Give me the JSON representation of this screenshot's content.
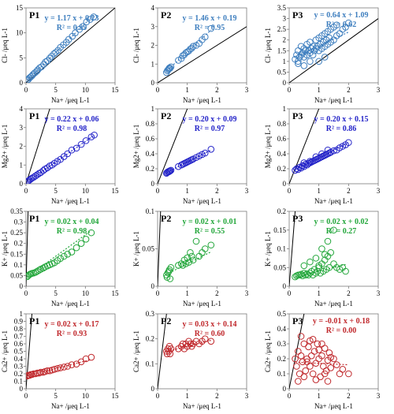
{
  "colors": {
    "cl": "#3f7fbf",
    "mg": "#2323c8",
    "k": "#22a63a",
    "ca": "#c0282c",
    "ref": "#000000"
  },
  "chart_data": [
    {
      "type": "scatter",
      "title": "P1",
      "xlabel": "Na+ /μeq L-1",
      "ylabel": "Cl- /μeq L-1",
      "xlim": [
        0,
        15
      ],
      "ylim": [
        0,
        15
      ],
      "xticks": [
        "0",
        "5",
        "10",
        "15"
      ],
      "yticks": [
        "0",
        "5",
        "10",
        "15"
      ],
      "equation": "y = 1.17 x + 0.23",
      "r2": "R² = 0.99",
      "fit": {
        "slope": 1.17,
        "intercept": 0.23
      },
      "points_x": [
        0.2,
        0.4,
        0.6,
        0.8,
        1.0,
        1.2,
        1.5,
        1.8,
        2.0,
        2.3,
        2.6,
        3.0,
        3.3,
        3.6,
        4.0,
        4.3,
        4.7,
        5.0,
        5.4,
        5.8,
        6.3,
        6.8,
        7.2,
        7.8,
        8.3,
        9.0,
        9.6,
        10.2,
        10.8,
        11.4
      ],
      "points_y": [
        0.5,
        0.7,
        1.0,
        1.2,
        1.4,
        1.7,
        2.0,
        2.3,
        2.6,
        3.0,
        3.2,
        3.7,
        4.2,
        4.4,
        4.9,
        5.3,
        5.8,
        6.1,
        6.5,
        7.1,
        7.6,
        8.1,
        8.7,
        9.3,
        10.0,
        10.7,
        11.3,
        12.2,
        12.7,
        13.2
      ]
    },
    {
      "type": "scatter",
      "title": "P2",
      "xlabel": "Na+ /μeq L-1",
      "ylabel": "Cl- /μeq L-1",
      "xlim": [
        0,
        3
      ],
      "ylim": [
        0,
        4
      ],
      "xticks": [
        "0",
        "1",
        "2",
        "3"
      ],
      "yticks": [
        "0",
        "1",
        "2",
        "3",
        "4"
      ],
      "equation": "y = 1.46 x + 0.19",
      "r2": "R² = 0.95",
      "fit": {
        "slope": 1.46,
        "intercept": 0.19
      },
      "points_x": [
        0.3,
        0.33,
        0.36,
        0.38,
        0.4,
        0.42,
        0.45,
        0.7,
        0.8,
        0.85,
        0.9,
        0.95,
        1.0,
        1.05,
        1.1,
        1.15,
        1.2,
        1.3,
        1.4,
        1.5,
        1.6,
        1.8
      ],
      "points_y": [
        0.55,
        0.65,
        0.7,
        0.75,
        0.8,
        0.78,
        0.85,
        1.2,
        1.3,
        1.45,
        1.5,
        1.6,
        1.65,
        1.7,
        1.8,
        1.85,
        1.95,
        2.0,
        2.1,
        2.3,
        2.45,
        2.9
      ]
    },
    {
      "type": "scatter",
      "title": "P3",
      "xlabel": "Na+ /μeq L-1",
      "ylabel": "Cl- /μeq L-1",
      "xlim": [
        0,
        3
      ],
      "ylim": [
        0,
        3.5
      ],
      "xticks": [
        "0",
        "1",
        "2",
        "3"
      ],
      "yticks": [
        "0",
        "0.5",
        "1",
        "1.5",
        "2",
        "2.5",
        "3",
        "3.5"
      ],
      "equation": "y = 0.64 x + 1.09",
      "r2": "R² = 0.62",
      "fit": {
        "slope": 0.64,
        "intercept": 1.09
      },
      "points_x": [
        0.2,
        0.25,
        0.3,
        0.3,
        0.35,
        0.4,
        0.4,
        0.45,
        0.5,
        0.5,
        0.55,
        0.6,
        0.6,
        0.65,
        0.7,
        0.7,
        0.75,
        0.8,
        0.8,
        0.85,
        0.9,
        0.9,
        0.95,
        1.0,
        1.0,
        1.05,
        1.1,
        1.1,
        1.15,
        1.2,
        1.2,
        1.25,
        1.3,
        1.3,
        1.35,
        1.4,
        1.4,
        1.5,
        1.5,
        1.6,
        1.6,
        1.7,
        1.8,
        1.9,
        2.0,
        0.3,
        0.5,
        0.7,
        1.0,
        1.2
      ],
      "points_y": [
        1.1,
        1.3,
        1.0,
        1.5,
        1.2,
        1.3,
        1.7,
        1.4,
        1.2,
        1.6,
        1.5,
        1.3,
        1.8,
        1.5,
        1.4,
        1.9,
        1.6,
        1.3,
        1.7,
        1.5,
        1.6,
        2.0,
        1.7,
        1.5,
        2.1,
        1.8,
        1.6,
        2.2,
        1.9,
        1.7,
        2.3,
        2.0,
        1.8,
        2.4,
        2.1,
        1.9,
        2.5,
        2.0,
        2.6,
        2.2,
        2.7,
        2.3,
        2.5,
        2.6,
        2.8,
        0.9,
        0.8,
        1.0,
        1.0,
        1.2
      ]
    },
    {
      "type": "scatter",
      "title": "P1",
      "xlabel": "Na+ /μeq L-1",
      "ylabel": "Mg2+ /μeq L-1",
      "xlim": [
        0,
        15
      ],
      "ylim": [
        0,
        4
      ],
      "xticks": [
        "0",
        "5",
        "10",
        "15"
      ],
      "yticks": [
        "0",
        "1",
        "2",
        "3",
        "4"
      ],
      "equation": "y = 0.22 x + 0.06",
      "r2": "R² = 0.98",
      "fit": {
        "slope": 0.22,
        "intercept": 0.06
      },
      "points_x": [
        0.2,
        0.4,
        0.6,
        0.8,
        1.0,
        1.3,
        1.6,
        1.9,
        2.2,
        2.5,
        2.9,
        3.2,
        3.6,
        4.0,
        4.4,
        4.8,
        5.3,
        5.8,
        6.4,
        7.0,
        7.7,
        8.5,
        9.3,
        10.1,
        11.0,
        11.5
      ],
      "points_y": [
        0.1,
        0.15,
        0.2,
        0.25,
        0.3,
        0.35,
        0.42,
        0.48,
        0.55,
        0.6,
        0.7,
        0.78,
        0.85,
        0.95,
        1.0,
        1.1,
        1.2,
        1.3,
        1.45,
        1.6,
        1.8,
        1.9,
        2.1,
        2.3,
        2.5,
        2.6
      ]
    },
    {
      "type": "scatter",
      "title": "P2",
      "xlabel": "Na+ /μeq L-1",
      "ylabel": "Mg2+ /μeq L-1",
      "xlim": [
        0,
        3
      ],
      "ylim": [
        0,
        1
      ],
      "xticks": [
        "0",
        "1",
        "2",
        "3"
      ],
      "yticks": [
        "0",
        "0.2",
        "0.4",
        "0.6",
        "0.8",
        "1"
      ],
      "equation": "y = 0.20 x + 0.09",
      "r2": "R² = 0.97",
      "fit": {
        "slope": 0.2,
        "intercept": 0.09
      },
      "points_x": [
        0.3,
        0.32,
        0.35,
        0.38,
        0.4,
        0.42,
        0.45,
        0.7,
        0.8,
        0.85,
        0.9,
        0.95,
        1.0,
        1.05,
        1.1,
        1.15,
        1.2,
        1.3,
        1.4,
        1.5,
        1.6,
        1.8
      ],
      "points_y": [
        0.14,
        0.15,
        0.16,
        0.16,
        0.17,
        0.17,
        0.18,
        0.23,
        0.25,
        0.26,
        0.27,
        0.28,
        0.29,
        0.3,
        0.31,
        0.32,
        0.33,
        0.35,
        0.37,
        0.39,
        0.41,
        0.46
      ]
    },
    {
      "type": "scatter",
      "title": "P3",
      "xlabel": "Na+ /μeq L-1",
      "ylabel": "Mg2+ /μeq L-1",
      "xlim": [
        0,
        3
      ],
      "ylim": [
        0,
        1
      ],
      "xticks": [
        "0",
        "1",
        "2",
        "3"
      ],
      "yticks": [
        "0",
        "0.2",
        "0.4",
        "0.6",
        "0.8",
        "1"
      ],
      "equation": "y = 0.20 x + 0.15",
      "r2": "R² = 0.86",
      "fit": {
        "slope": 0.2,
        "intercept": 0.15
      },
      "points_x": [
        0.2,
        0.25,
        0.3,
        0.35,
        0.4,
        0.45,
        0.5,
        0.55,
        0.6,
        0.65,
        0.7,
        0.75,
        0.8,
        0.85,
        0.9,
        0.95,
        1.0,
        1.05,
        1.1,
        1.15,
        1.2,
        1.25,
        1.3,
        1.35,
        1.4,
        1.5,
        1.6,
        1.7,
        1.8,
        1.9,
        2.0,
        0.5,
        0.7,
        0.9,
        1.1,
        1.3
      ],
      "points_y": [
        0.18,
        0.2,
        0.19,
        0.22,
        0.21,
        0.24,
        0.23,
        0.26,
        0.25,
        0.27,
        0.28,
        0.29,
        0.3,
        0.31,
        0.32,
        0.33,
        0.34,
        0.35,
        0.36,
        0.37,
        0.38,
        0.39,
        0.4,
        0.41,
        0.42,
        0.44,
        0.45,
        0.48,
        0.5,
        0.52,
        0.55,
        0.28,
        0.3,
        0.36,
        0.4,
        0.45
      ]
    },
    {
      "type": "scatter",
      "title": "P1",
      "xlabel": "Na+ /μeq L-1",
      "ylabel": "K+ /μeq L-1",
      "xlim": [
        0,
        15
      ],
      "ylim": [
        0,
        0.35
      ],
      "xticks": [
        "0",
        "5",
        "10",
        "15"
      ],
      "yticks": [
        "0",
        "0.05",
        "0.1",
        "0.15",
        "0.2",
        "0.25",
        "0.3",
        "0.35"
      ],
      "equation": "y = 0.02 x + 0.04",
      "r2": "R² = 0.98",
      "fit": {
        "slope": 0.02,
        "intercept": 0.04
      },
      "points_x": [
        0.2,
        0.4,
        0.6,
        0.8,
        1.0,
        1.3,
        1.6,
        1.9,
        2.2,
        2.5,
        2.9,
        3.2,
        3.6,
        4.0,
        4.4,
        4.8,
        5.3,
        5.8,
        6.4,
        7.0,
        7.7,
        8.5,
        9.3,
        10.1,
        11.0
      ],
      "points_y": [
        0.045,
        0.05,
        0.055,
        0.058,
        0.06,
        0.062,
        0.065,
        0.07,
        0.075,
        0.08,
        0.085,
        0.09,
        0.095,
        0.1,
        0.105,
        0.11,
        0.12,
        0.13,
        0.14,
        0.15,
        0.16,
        0.18,
        0.2,
        0.22,
        0.25
      ]
    },
    {
      "type": "scatter",
      "title": "P2",
      "xlabel": "Na+ /μeq L-1",
      "ylabel": "K+ /μeq L-1",
      "xlim": [
        0,
        3
      ],
      "ylim": [
        0,
        0.1
      ],
      "xticks": [
        "0",
        "1",
        "2",
        "3"
      ],
      "yticks": [
        "0",
        "0.05",
        "0.1"
      ],
      "equation": "y = 0.02 x + 0.01",
      "r2": "R² = 0.55",
      "fit": {
        "slope": 0.02,
        "intercept": 0.01
      },
      "points_x": [
        0.3,
        0.32,
        0.35,
        0.38,
        0.4,
        0.42,
        0.45,
        0.7,
        0.8,
        0.85,
        0.9,
        0.95,
        1.0,
        1.05,
        1.1,
        1.15,
        1.2,
        1.3,
        1.4,
        1.5,
        1.6,
        1.8
      ],
      "points_y": [
        0.015,
        0.012,
        0.018,
        0.02,
        0.022,
        0.01,
        0.025,
        0.028,
        0.03,
        0.028,
        0.035,
        0.03,
        0.038,
        0.032,
        0.045,
        0.04,
        0.035,
        0.06,
        0.04,
        0.045,
        0.05,
        0.055
      ]
    },
    {
      "type": "scatter",
      "title": "P3",
      "xlabel": "Na+ /μeq L-1",
      "ylabel": "K+ /μeq L-1",
      "xlim": [
        0,
        3
      ],
      "ylim": [
        0,
        0.2
      ],
      "xticks": [
        "0",
        "1",
        "2",
        "3"
      ],
      "yticks": [
        "0",
        "0.05",
        "0.1",
        "0.15",
        "0.2"
      ],
      "equation": "y = 0.02 x + 0.02",
      "r2": "R² = 0.27",
      "fit": {
        "slope": 0.02,
        "intercept": 0.02
      },
      "points_x": [
        0.2,
        0.25,
        0.3,
        0.35,
        0.4,
        0.45,
        0.5,
        0.55,
        0.6,
        0.65,
        0.7,
        0.75,
        0.8,
        0.85,
        0.9,
        0.95,
        1.0,
        1.05,
        1.1,
        1.15,
        1.2,
        1.25,
        1.3,
        1.35,
        1.4,
        1.5,
        1.6,
        1.7,
        1.8,
        1.9,
        0.5,
        0.7,
        0.9,
        1.1,
        1.3,
        1.5,
        1.2,
        1.0
      ],
      "points_y": [
        0.025,
        0.028,
        0.03,
        0.03,
        0.032,
        0.028,
        0.035,
        0.03,
        0.033,
        0.03,
        0.035,
        0.04,
        0.03,
        0.045,
        0.035,
        0.04,
        0.05,
        0.035,
        0.06,
        0.04,
        0.07,
        0.045,
        0.08,
        0.05,
        0.09,
        0.06,
        0.05,
        0.045,
        0.05,
        0.04,
        0.055,
        0.065,
        0.075,
        0.1,
        0.12,
        0.15,
        0.085,
        0.055
      ]
    },
    {
      "type": "scatter",
      "title": "P1",
      "xlabel": "Na+ /μeq L-1",
      "ylabel": "Ca2+ /μeq L-1",
      "xlim": [
        0,
        15
      ],
      "ylim": [
        0,
        1
      ],
      "xticks": [
        "0",
        "5",
        "10",
        "15"
      ],
      "yticks": [
        "0",
        "0.1",
        "0.2",
        "0.3",
        "0.4",
        "0.5",
        "0.6",
        "0.7",
        "0.8",
        "0.9",
        "1"
      ],
      "equation": "y = 0.02 x + 0.17",
      "r2": "R² = 0.93",
      "fit": {
        "slope": 0.02,
        "intercept": 0.17
      },
      "points_x": [
        0.2,
        0.4,
        0.6,
        0.8,
        1.0,
        1.3,
        1.6,
        1.9,
        2.2,
        2.5,
        2.9,
        3.2,
        3.6,
        4.0,
        4.4,
        4.8,
        5.3,
        5.8,
        6.4,
        7.0,
        7.7,
        8.5,
        9.3,
        10.1,
        11.0
      ],
      "points_y": [
        0.17,
        0.18,
        0.18,
        0.19,
        0.19,
        0.2,
        0.2,
        0.21,
        0.21,
        0.22,
        0.22,
        0.23,
        0.24,
        0.24,
        0.25,
        0.26,
        0.27,
        0.28,
        0.29,
        0.3,
        0.32,
        0.33,
        0.36,
        0.4,
        0.42
      ]
    },
    {
      "type": "scatter",
      "title": "P2",
      "xlabel": "Na+ /μeq L-1",
      "ylabel": "Ca2+ /μeq L-1",
      "xlim": [
        0,
        3
      ],
      "ylim": [
        0,
        0.3
      ],
      "xticks": [
        "0",
        "1",
        "2",
        "3"
      ],
      "yticks": [
        "0",
        "0.1",
        "0.2",
        "0.3"
      ],
      "equation": "y = 0.03 x + 0.14",
      "r2": "R² = 0.60",
      "fit": {
        "slope": 0.03,
        "intercept": 0.14
      },
      "points_x": [
        0.3,
        0.32,
        0.35,
        0.38,
        0.4,
        0.42,
        0.45,
        0.7,
        0.8,
        0.85,
        0.9,
        0.95,
        1.0,
        1.05,
        1.1,
        1.15,
        1.2,
        1.3,
        1.4,
        1.5,
        1.6,
        1.8
      ],
      "points_y": [
        0.15,
        0.14,
        0.16,
        0.15,
        0.17,
        0.14,
        0.16,
        0.16,
        0.17,
        0.18,
        0.16,
        0.18,
        0.17,
        0.19,
        0.18,
        0.17,
        0.18,
        0.19,
        0.18,
        0.19,
        0.2,
        0.19
      ]
    },
    {
      "type": "scatter",
      "title": "P3",
      "xlabel": "Na+ /μeq L-1",
      "ylabel": "Ca2+ /μeq L-1",
      "xlim": [
        0,
        3
      ],
      "ylim": [
        0,
        0.5
      ],
      "xticks": [
        "0",
        "1",
        "2",
        "3"
      ],
      "yticks": [
        "0",
        "0.1",
        "0.2",
        "0.3",
        "0.4",
        "0.5"
      ],
      "equation": "y = -0.01 x + 0.18",
      "r2": "R² = 0.00",
      "fit": {
        "slope": -0.01,
        "intercept": 0.18
      },
      "points_x": [
        0.2,
        0.25,
        0.3,
        0.35,
        0.4,
        0.45,
        0.5,
        0.55,
        0.6,
        0.65,
        0.7,
        0.75,
        0.8,
        0.85,
        0.9,
        0.95,
        1.0,
        1.05,
        1.1,
        1.15,
        1.2,
        1.25,
        1.3,
        1.35,
        1.4,
        1.5,
        1.6,
        1.7,
        1.8,
        2.0,
        0.3,
        0.5,
        0.7,
        0.9,
        1.1,
        1.3,
        0.4,
        0.8,
        1.2,
        0.6,
        1.0,
        1.4
      ],
      "points_y": [
        0.2,
        0.15,
        0.25,
        0.1,
        0.22,
        0.18,
        0.3,
        0.12,
        0.2,
        0.28,
        0.15,
        0.22,
        0.1,
        0.25,
        0.17,
        0.3,
        0.2,
        0.08,
        0.22,
        0.15,
        0.27,
        0.12,
        0.19,
        0.24,
        0.14,
        0.2,
        0.16,
        0.1,
        0.13,
        0.1,
        0.05,
        0.08,
        0.32,
        0.06,
        0.3,
        0.05,
        0.35,
        0.33,
        0.1,
        0.18,
        0.26,
        0.21
      ]
    }
  ]
}
